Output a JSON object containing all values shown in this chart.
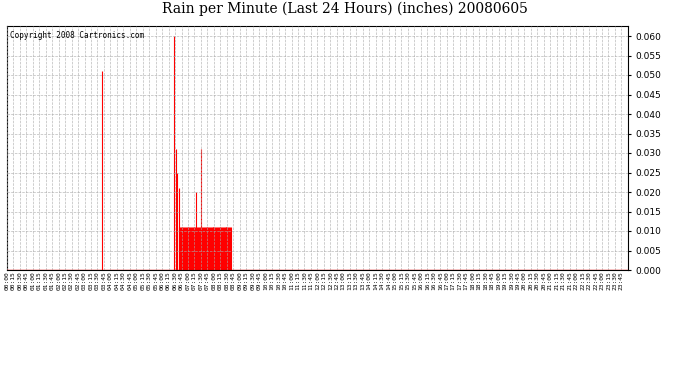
{
  "title": "Rain per Minute (Last 24 Hours) (inches) 20080605",
  "copyright_text": "Copyright 2008 Cartronics.com",
  "line_color": "#FF0000",
  "bg_color": "#FFFFFF",
  "grid_color": "#AAAAAA",
  "ylim": [
    0.0,
    0.0625
  ],
  "yticks": [
    0.0,
    0.005,
    0.01,
    0.015,
    0.02,
    0.025,
    0.03,
    0.035,
    0.04,
    0.045,
    0.05,
    0.055,
    0.06
  ],
  "total_minutes": 1440,
  "rain_events": [
    {
      "minute": 220,
      "value": 0.051
    },
    {
      "minute": 387,
      "value": 0.06
    },
    {
      "minute": 392,
      "value": 0.031
    },
    {
      "minute": 395,
      "value": 0.025
    },
    {
      "minute": 398,
      "value": 0.021
    },
    {
      "minute": 400,
      "value": 0.011
    },
    {
      "minute": 402,
      "value": 0.011
    },
    {
      "minute": 403,
      "value": 0.011
    },
    {
      "minute": 405,
      "value": 0.011
    },
    {
      "minute": 407,
      "value": 0.011
    },
    {
      "minute": 409,
      "value": 0.011
    },
    {
      "minute": 411,
      "value": 0.011
    },
    {
      "minute": 413,
      "value": 0.011
    },
    {
      "minute": 415,
      "value": 0.011
    },
    {
      "minute": 417,
      "value": 0.011
    },
    {
      "minute": 419,
      "value": 0.011
    },
    {
      "minute": 421,
      "value": 0.011
    },
    {
      "minute": 423,
      "value": 0.011
    },
    {
      "minute": 425,
      "value": 0.011
    },
    {
      "minute": 427,
      "value": 0.011
    },
    {
      "minute": 429,
      "value": 0.011
    },
    {
      "minute": 431,
      "value": 0.011
    },
    {
      "minute": 433,
      "value": 0.011
    },
    {
      "minute": 435,
      "value": 0.011
    },
    {
      "minute": 437,
      "value": 0.011
    },
    {
      "minute": 439,
      "value": 0.02
    },
    {
      "minute": 441,
      "value": 0.011
    },
    {
      "minute": 443,
      "value": 0.011
    },
    {
      "minute": 445,
      "value": 0.011
    },
    {
      "minute": 447,
      "value": 0.011
    },
    {
      "minute": 449,
      "value": 0.031
    },
    {
      "minute": 451,
      "value": 0.011
    },
    {
      "minute": 453,
      "value": 0.011
    },
    {
      "minute": 455,
      "value": 0.011
    },
    {
      "minute": 457,
      "value": 0.011
    },
    {
      "minute": 459,
      "value": 0.011
    },
    {
      "minute": 461,
      "value": 0.011
    },
    {
      "minute": 463,
      "value": 0.011
    },
    {
      "minute": 465,
      "value": 0.011
    },
    {
      "minute": 467,
      "value": 0.011
    },
    {
      "minute": 469,
      "value": 0.011
    },
    {
      "minute": 471,
      "value": 0.011
    },
    {
      "minute": 473,
      "value": 0.011
    },
    {
      "minute": 475,
      "value": 0.011
    },
    {
      "minute": 477,
      "value": 0.011
    },
    {
      "minute": 479,
      "value": 0.011
    },
    {
      "minute": 481,
      "value": 0.011
    },
    {
      "minute": 483,
      "value": 0.011
    },
    {
      "minute": 485,
      "value": 0.011
    },
    {
      "minute": 487,
      "value": 0.011
    },
    {
      "minute": 489,
      "value": 0.011
    },
    {
      "minute": 491,
      "value": 0.011
    },
    {
      "minute": 493,
      "value": 0.011
    },
    {
      "minute": 495,
      "value": 0.011
    },
    {
      "minute": 497,
      "value": 0.011
    },
    {
      "minute": 499,
      "value": 0.011
    },
    {
      "minute": 501,
      "value": 0.011
    },
    {
      "minute": 503,
      "value": 0.011
    },
    {
      "minute": 505,
      "value": 0.011
    },
    {
      "minute": 507,
      "value": 0.011
    },
    {
      "minute": 509,
      "value": 0.011
    },
    {
      "minute": 511,
      "value": 0.011
    },
    {
      "minute": 513,
      "value": 0.011
    },
    {
      "minute": 515,
      "value": 0.011
    },
    {
      "minute": 517,
      "value": 0.011
    },
    {
      "minute": 519,
      "value": 0.011
    }
  ],
  "x_tick_minutes": [
    0,
    15,
    30,
    45,
    60,
    75,
    90,
    105,
    120,
    135,
    150,
    165,
    180,
    195,
    210,
    225,
    240,
    255,
    270,
    285,
    300,
    315,
    330,
    345,
    360,
    375,
    390,
    405,
    420,
    435,
    450,
    465,
    480,
    495,
    510,
    525,
    540,
    555,
    570,
    585,
    600,
    615,
    630,
    645,
    660,
    675,
    690,
    705,
    720,
    735,
    750,
    765,
    780,
    795,
    810,
    825,
    840,
    855,
    870,
    885,
    900,
    915,
    930,
    945,
    960,
    975,
    990,
    1005,
    1020,
    1035,
    1050,
    1065,
    1080,
    1095,
    1110,
    1125,
    1140,
    1155,
    1170,
    1185,
    1200,
    1215,
    1230,
    1245,
    1260,
    1275,
    1290,
    1305,
    1320,
    1335,
    1350,
    1365,
    1380,
    1395,
    1410,
    1425
  ],
  "x_tick_labels": [
    "00:00",
    "00:15",
    "00:30",
    "00:45",
    "01:00",
    "01:15",
    "01:30",
    "01:45",
    "02:00",
    "02:15",
    "02:30",
    "02:45",
    "03:00",
    "03:15",
    "03:30",
    "03:45",
    "04:00",
    "04:15",
    "04:30",
    "04:45",
    "05:00",
    "05:15",
    "05:30",
    "05:45",
    "06:00",
    "06:15",
    "06:30",
    "06:45",
    "07:00",
    "07:15",
    "07:30",
    "07:45",
    "08:00",
    "08:15",
    "08:30",
    "08:45",
    "09:00",
    "09:15",
    "09:30",
    "09:45",
    "10:00",
    "10:15",
    "10:30",
    "10:45",
    "11:00",
    "11:15",
    "11:30",
    "11:45",
    "12:00",
    "12:15",
    "12:30",
    "12:45",
    "13:00",
    "13:15",
    "13:30",
    "13:45",
    "14:00",
    "14:15",
    "14:30",
    "14:45",
    "15:00",
    "15:15",
    "15:30",
    "15:45",
    "16:00",
    "16:15",
    "16:30",
    "16:45",
    "17:00",
    "17:15",
    "17:30",
    "17:45",
    "18:00",
    "18:15",
    "18:30",
    "18:45",
    "19:00",
    "19:15",
    "19:30",
    "19:45",
    "20:00",
    "20:15",
    "20:30",
    "20:45",
    "21:00",
    "21:15",
    "21:30",
    "21:45",
    "22:00",
    "22:15",
    "22:30",
    "22:45",
    "23:00",
    "23:15",
    "23:30",
    "23:45"
  ]
}
